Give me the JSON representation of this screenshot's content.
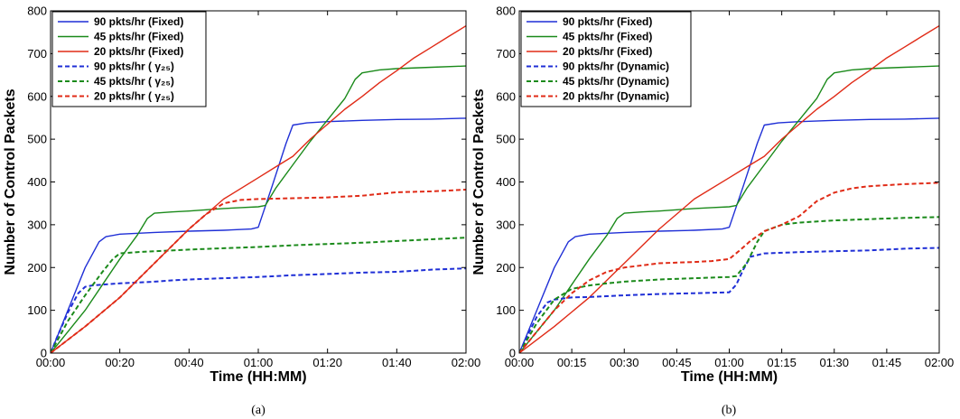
{
  "chart_data": [
    {
      "type": "line",
      "caption": "(a)",
      "xlabel": "Time (HH:MM)",
      "ylabel": "Number of Control Packets",
      "x_unit": "minutes",
      "xlim": [
        0,
        120
      ],
      "ylim": [
        0,
        800
      ],
      "xticks": [
        0,
        20,
        40,
        60,
        80,
        100,
        120
      ],
      "xtick_labels": [
        "00:00",
        "00:20",
        "00:40",
        "01:00",
        "01:20",
        "01:40",
        "02:00"
      ],
      "yticks": [
        0,
        100,
        200,
        300,
        400,
        500,
        600,
        700,
        800
      ],
      "ytick_labels": [
        "0",
        "100",
        "200",
        "300",
        "400",
        "500",
        "600",
        "700",
        "800"
      ],
      "grid": false,
      "legend_position": "top-left",
      "series": [
        {
          "name": "90 pkts/hr (Fixed)",
          "color": "#1f2fd6",
          "dash": "solid",
          "x": [
            0,
            2,
            6,
            10,
            14,
            16,
            20,
            30,
            40,
            50,
            58,
            60,
            64,
            68,
            70,
            74,
            80,
            90,
            100,
            110,
            120
          ],
          "y": [
            0,
            40,
            120,
            200,
            260,
            272,
            278,
            282,
            285,
            287,
            290,
            294,
            390,
            490,
            533,
            538,
            541,
            544,
            546,
            547,
            549
          ]
        },
        {
          "name": "45 pkts/hr (Fixed)",
          "color": "#1a8a1a",
          "dash": "solid",
          "x": [
            0,
            5,
            10,
            15,
            20,
            25,
            28,
            30,
            35,
            40,
            45,
            50,
            55,
            60,
            62,
            65,
            70,
            75,
            80,
            85,
            88,
            90,
            95,
            100,
            110,
            120
          ],
          "y": [
            0,
            50,
            100,
            160,
            220,
            275,
            315,
            327,
            330,
            332,
            335,
            338,
            340,
            342,
            345,
            385,
            440,
            495,
            545,
            595,
            640,
            655,
            662,
            665,
            668,
            671
          ]
        },
        {
          "name": "20 pkts/hr (Fixed)",
          "color": "#e02b17",
          "dash": "solid",
          "x": [
            0,
            10,
            20,
            30,
            40,
            50,
            60,
            65,
            70,
            75,
            80,
            85,
            90,
            95,
            100,
            105,
            110,
            115,
            120
          ],
          "y": [
            0,
            62,
            130,
            210,
            290,
            360,
            410,
            435,
            460,
            500,
            535,
            570,
            600,
            632,
            660,
            690,
            715,
            740,
            765
          ]
        },
        {
          "name": "90 pkts/hr ( γ₂₅)",
          "color": "#1f2fd6",
          "dash": "dashed",
          "x": [
            0,
            2,
            5,
            8,
            10,
            12,
            15,
            20,
            30,
            35,
            40,
            50,
            60,
            70,
            80,
            90,
            100,
            110,
            120
          ],
          "y": [
            0,
            40,
            95,
            140,
            155,
            158,
            160,
            163,
            167,
            170,
            172,
            175,
            178,
            182,
            185,
            188,
            190,
            195,
            198
          ]
        },
        {
          "name": "45 pkts/hr ( γ₂₅)",
          "color": "#1a8a1a",
          "dash": "dashed",
          "x": [
            0,
            5,
            10,
            15,
            18,
            20,
            25,
            30,
            40,
            50,
            60,
            70,
            80,
            90,
            100,
            110,
            120
          ],
          "y": [
            0,
            75,
            135,
            190,
            220,
            233,
            236,
            238,
            242,
            245,
            248,
            252,
            255,
            258,
            262,
            266,
            270
          ]
        },
        {
          "name": "20 pkts/hr ( γ₂₅)",
          "color": "#e02b17",
          "dash": "dashed",
          "x": [
            0,
            10,
            20,
            30,
            40,
            45,
            50,
            55,
            60,
            70,
            80,
            90,
            95,
            100,
            110,
            120
          ],
          "y": [
            0,
            62,
            130,
            210,
            290,
            325,
            350,
            358,
            360,
            362,
            364,
            368,
            372,
            376,
            378,
            382
          ]
        }
      ]
    },
    {
      "type": "line",
      "caption": "(b)",
      "xlabel": "Time (HH:MM)",
      "ylabel": "Number of Control Packets",
      "x_unit": "minutes",
      "xlim": [
        0,
        120
      ],
      "ylim": [
        0,
        800
      ],
      "xticks": [
        0,
        15,
        30,
        45,
        60,
        75,
        90,
        105,
        120
      ],
      "xtick_labels": [
        "00:00",
        "00:15",
        "00:30",
        "00:45",
        "01:00",
        "01:15",
        "01:30",
        "01:45",
        "02:00"
      ],
      "yticks": [
        0,
        100,
        200,
        300,
        400,
        500,
        600,
        700,
        800
      ],
      "ytick_labels": [
        "0",
        "100",
        "200",
        "300",
        "400",
        "500",
        "600",
        "700",
        "800"
      ],
      "grid": false,
      "legend_position": "top-left",
      "series": [
        {
          "name": "90 pkts/hr (Fixed)",
          "color": "#1f2fd6",
          "dash": "solid",
          "x": [
            0,
            2,
            6,
            10,
            14,
            16,
            20,
            30,
            40,
            50,
            58,
            60,
            64,
            68,
            70,
            74,
            80,
            90,
            100,
            110,
            120
          ],
          "y": [
            0,
            40,
            120,
            200,
            260,
            272,
            278,
            282,
            285,
            287,
            290,
            294,
            390,
            490,
            533,
            538,
            541,
            544,
            546,
            547,
            549
          ]
        },
        {
          "name": "45 pkts/hr (Fixed)",
          "color": "#1a8a1a",
          "dash": "solid",
          "x": [
            0,
            5,
            10,
            15,
            20,
            25,
            28,
            30,
            35,
            40,
            45,
            50,
            55,
            60,
            62,
            65,
            70,
            75,
            80,
            85,
            88,
            90,
            95,
            100,
            110,
            120
          ],
          "y": [
            0,
            50,
            100,
            160,
            220,
            275,
            315,
            327,
            330,
            332,
            335,
            338,
            340,
            342,
            345,
            385,
            440,
            495,
            545,
            595,
            640,
            655,
            662,
            665,
            668,
            671
          ]
        },
        {
          "name": "20 pkts/hr (Fixed)",
          "color": "#e02b17",
          "dash": "solid",
          "x": [
            0,
            10,
            20,
            30,
            40,
            50,
            60,
            65,
            70,
            75,
            80,
            85,
            90,
            95,
            100,
            105,
            110,
            115,
            120
          ],
          "y": [
            0,
            62,
            130,
            210,
            290,
            360,
            410,
            435,
            460,
            500,
            535,
            570,
            600,
            632,
            660,
            690,
            715,
            740,
            765
          ]
        },
        {
          "name": "90 pkts/hr (Dynamic)",
          "color": "#1f2fd6",
          "dash": "dashed",
          "x": [
            0,
            2,
            5,
            8,
            10,
            15,
            20,
            30,
            40,
            50,
            60,
            62,
            64,
            66,
            70,
            80,
            90,
            100,
            110,
            120
          ],
          "y": [
            0,
            35,
            85,
            118,
            125,
            130,
            131,
            135,
            138,
            140,
            142,
            160,
            195,
            225,
            233,
            236,
            238,
            240,
            244,
            246
          ]
        },
        {
          "name": "45 pkts/hr (Dynamic)",
          "color": "#1a8a1a",
          "dash": "dashed",
          "x": [
            0,
            5,
            10,
            15,
            20,
            25,
            30,
            40,
            50,
            60,
            62,
            65,
            68,
            70,
            75,
            80,
            90,
            100,
            110,
            120
          ],
          "y": [
            0,
            70,
            125,
            150,
            158,
            163,
            167,
            172,
            175,
            178,
            180,
            210,
            260,
            285,
            300,
            305,
            310,
            313,
            316,
            318
          ]
        },
        {
          "name": "20 pkts/hr (Dynamic)",
          "color": "#e02b17",
          "dash": "dashed",
          "x": [
            0,
            5,
            10,
            15,
            20,
            25,
            30,
            40,
            50,
            55,
            60,
            63,
            66,
            70,
            75,
            80,
            85,
            90,
            95,
            100,
            110,
            120
          ],
          "y": [
            0,
            50,
            100,
            140,
            170,
            190,
            200,
            210,
            213,
            215,
            220,
            240,
            262,
            285,
            300,
            320,
            355,
            375,
            385,
            390,
            395,
            398
          ]
        }
      ]
    }
  ]
}
